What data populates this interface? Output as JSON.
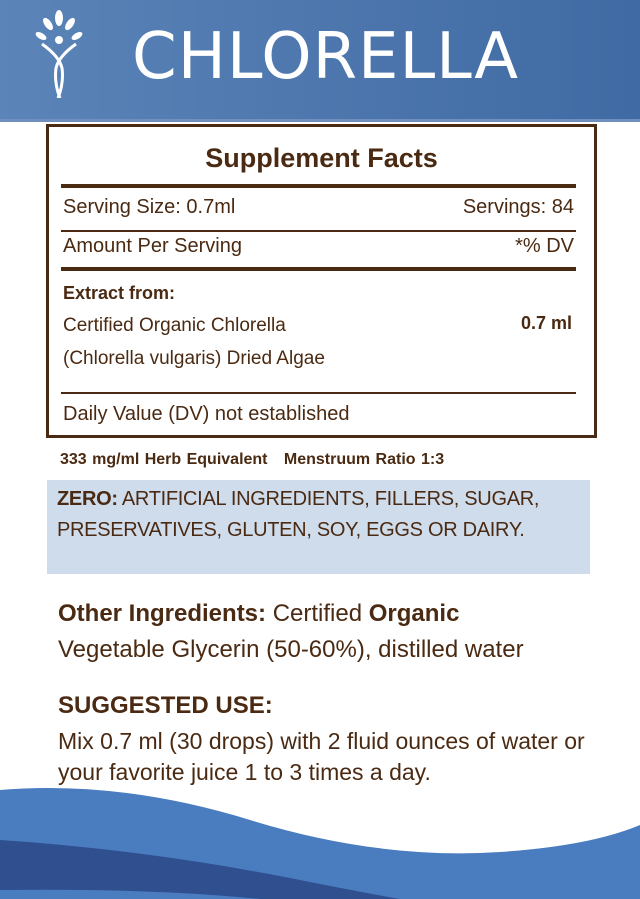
{
  "header": {
    "title": "CHLORELLA",
    "logo_icon": "tree-figure-logo",
    "color": "#4a74ab"
  },
  "facts": {
    "title": "Supplement Facts",
    "serving_size": "Serving Size: 0.7ml",
    "servings": "Servings: 84",
    "amount_per_serving": "Amount Per Serving",
    "dv": "*% DV",
    "extract_heading": "Extract from:",
    "ingredient_line1": "Certified Organic Chlorella",
    "ingredient_line2": "(Chlorella vulgaris) Dried Algae",
    "amount": "0.7 ml",
    "daily_value_note": "Daily Value (DV) not established"
  },
  "herb_equivalent": "333 mg/ml Herb Equivalent",
  "menstruum_ratio": "Menstruum Ratio 1:3",
  "zero": {
    "label": "ZERO:",
    "text": "ARTIFICIAL INGREDIENTS, FILLERS, SUGAR, PRESERVATIVES, GLUTEN, SOY, EGGS OR DAIRY."
  },
  "other_ingredients": {
    "label": "Other Ingredients:",
    "text1": "Certified",
    "organic": "Organic",
    "text2": "Vegetable Glycerin (50-60%), distilled water"
  },
  "suggested_use": {
    "label": "SUGGESTED USE:",
    "text": "Mix 0.7 ml (30 drops) with 2 fluid ounces of water or your favorite juice 1 to 3 times a day."
  }
}
